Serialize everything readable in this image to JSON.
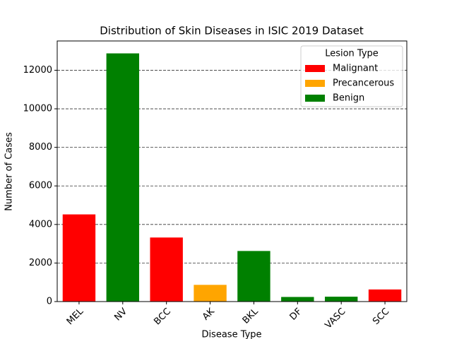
{
  "chart_data": {
    "type": "bar",
    "title": "Distribution of Skin Diseases in ISIC 2019 Dataset",
    "x_label": "Disease Type",
    "y_label": "Number of Cases",
    "categories": [
      "MEL",
      "NV",
      "BCC",
      "AK",
      "BKL",
      "DF",
      "VASC",
      "SCC"
    ],
    "values": [
      4522,
      12875,
      3323,
      867,
      2624,
      239,
      253,
      628
    ],
    "colors": [
      "red",
      "green",
      "red",
      "orange",
      "green",
      "green",
      "green",
      "red"
    ],
    "ylim": [
      0,
      13519
    ],
    "yticks": [
      0,
      2000,
      4000,
      6000,
      8000,
      10000,
      12000
    ],
    "grid": true,
    "legend": {
      "title": "Lesion Type",
      "position": "upper right",
      "entries": [
        {
          "name": "Malignant",
          "color": "red"
        },
        {
          "name": "Precancerous",
          "color": "orange"
        },
        {
          "name": "Benign",
          "color": "green"
        }
      ]
    }
  }
}
